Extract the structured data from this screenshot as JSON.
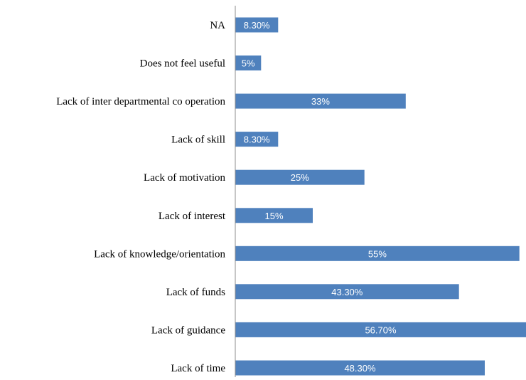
{
  "chart_data": {
    "type": "bar",
    "orientation": "horizontal",
    "categories": [
      "NA",
      "Does not feel useful",
      "Lack of inter departmental co operation",
      "Lack of skill",
      "Lack of motivation",
      "Lack of interest",
      "Lack of knowledge/orientation",
      "Lack of funds",
      "Lack of guidance",
      "Lack of time"
    ],
    "values": [
      8.3,
      5,
      33,
      8.3,
      25,
      15,
      55,
      43.3,
      56.7,
      48.3
    ],
    "data_labels": [
      "8.30%",
      "5%",
      "33%",
      "8.30%",
      "25%",
      "15%",
      "55%",
      "43.30%",
      "56.70%",
      "48.30%"
    ],
    "unit": "%",
    "xlim": [
      0,
      56
    ],
    "bar_color": "#4F81BD",
    "label_color": "#FFFFFF",
    "grid": false,
    "legend": "none"
  }
}
